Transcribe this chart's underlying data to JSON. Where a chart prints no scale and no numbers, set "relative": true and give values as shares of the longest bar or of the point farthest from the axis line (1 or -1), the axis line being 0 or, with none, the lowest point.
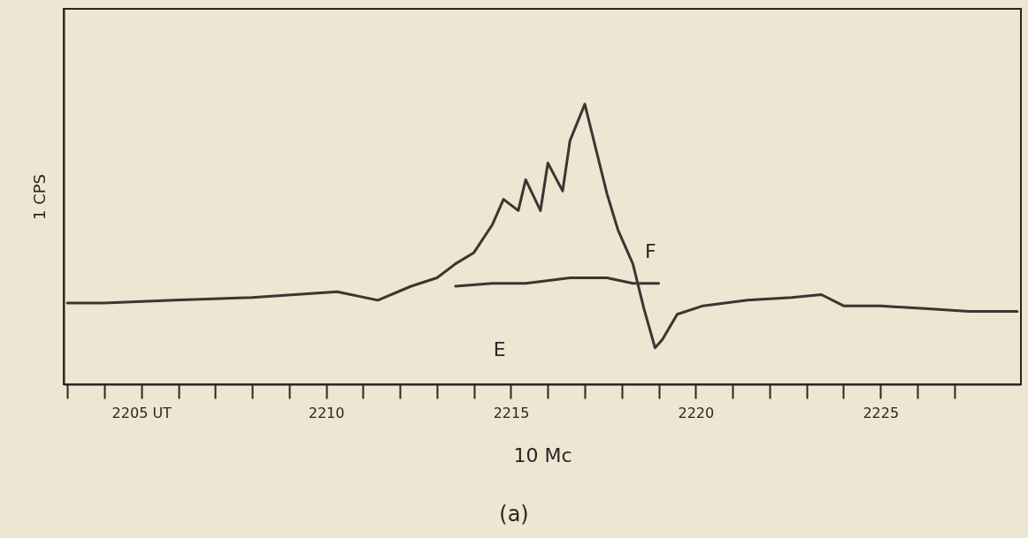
{
  "chart_data": {
    "type": "line",
    "relative": true,
    "xlabel": "10 Mc",
    "ylabel": "1 CPS",
    "xlim": [
      2202.9,
      2228.8
    ],
    "xticks": [
      {
        "value": 2203,
        "label": null
      },
      {
        "value": 2204,
        "label": null
      },
      {
        "value": 2205,
        "label": "2205 UT"
      },
      {
        "value": 2206,
        "label": null
      },
      {
        "value": 2207,
        "label": null
      },
      {
        "value": 2208,
        "label": null
      },
      {
        "value": 2209,
        "label": null
      },
      2210,
      {
        "value": 2211,
        "label": null
      },
      {
        "value": 2212,
        "label": null
      },
      {
        "value": 2213,
        "label": null
      },
      {
        "value": 2214,
        "label": null
      },
      2215,
      {
        "value": 2216,
        "label": null
      },
      {
        "value": 2217,
        "label": null
      },
      {
        "value": 2218,
        "label": null
      },
      {
        "value": 2219,
        "label": null
      },
      2220,
      {
        "value": 2221,
        "label": null
      },
      {
        "value": 2222,
        "label": null
      },
      {
        "value": 2223,
        "label": null
      },
      {
        "value": 2224,
        "label": null
      },
      2225,
      {
        "value": 2226,
        "label": null
      },
      {
        "value": 2227,
        "label": null
      }
    ],
    "series": [
      {
        "color": "#3a3632",
        "x": [
          2203.0,
          2204.0,
          2205.9,
          2208.0,
          2210.3,
          2211.4,
          2212.3,
          2213.0,
          2213.5,
          2214.0,
          2214.5,
          2214.8,
          2215.2,
          2215.4,
          2215.8,
          2216.0,
          2216.4,
          2216.6,
          2217.0,
          2217.3,
          2217.6,
          2217.9,
          2218.3,
          2218.6,
          2218.9,
          2219.1,
          2219.5,
          2220.2,
          2221.4,
          2222.6,
          2223.4,
          2224.0,
          2225.0,
          2226.2,
          2227.4,
          2228.7
        ],
        "values": [
          0.29,
          0.29,
          0.3,
          0.31,
          0.33,
          0.3,
          0.35,
          0.38,
          0.43,
          0.47,
          0.57,
          0.66,
          0.62,
          0.73,
          0.62,
          0.79,
          0.69,
          0.87,
          1.0,
          0.84,
          0.68,
          0.55,
          0.43,
          0.27,
          0.13,
          0.16,
          0.25,
          0.28,
          0.3,
          0.31,
          0.32,
          0.28,
          0.28,
          0.27,
          0.26,
          0.26
        ]
      },
      {
        "color": "#3a3632",
        "x": [
          2213.5,
          2214.5,
          2215.4,
          2216.6,
          2217.6,
          2218.3,
          2219.0
        ],
        "values": [
          0.35,
          0.36,
          0.36,
          0.38,
          0.38,
          0.36,
          0.36
        ]
      }
    ],
    "annotations": [
      {
        "text": "F",
        "x": 2218.3,
        "y": 0.43
      },
      {
        "text": "E",
        "x": 2214.5,
        "y": 0.36
      },
      "(a)"
    ],
    "grid": false,
    "marker": "none",
    "line_style": "solid"
  }
}
